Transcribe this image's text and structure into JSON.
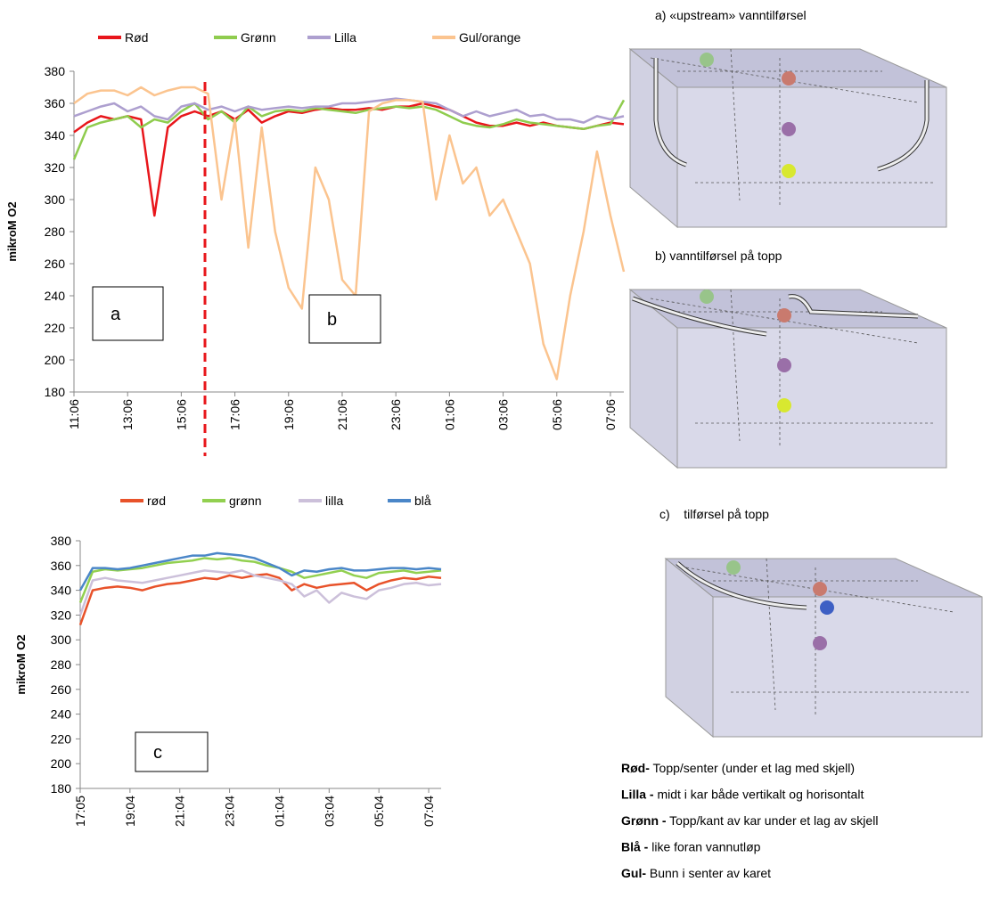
{
  "chart_data": [
    {
      "type": "line",
      "y_label": "mikroM O2",
      "categories": [
        "11:06",
        null,
        null,
        null,
        "13:06",
        null,
        null,
        null,
        "15:06",
        null,
        null,
        null,
        "17:06",
        null,
        null,
        null,
        "19:06",
        null,
        null,
        null,
        "21:06",
        null,
        null,
        null,
        "23:06",
        null,
        null,
        null,
        "01:06",
        null,
        null,
        null,
        "03:06",
        null,
        null,
        null,
        "05:06",
        null,
        null,
        null,
        "07:06",
        null
      ],
      "ylim": [
        180,
        380
      ],
      "yticks": [
        180,
        200,
        220,
        240,
        260,
        280,
        300,
        320,
        340,
        360,
        380
      ],
      "series": [
        {
          "name": "Rød",
          "color": "#e8161b",
          "values": [
            342,
            348,
            352,
            350,
            352,
            350,
            290,
            345,
            352,
            355,
            352,
            355,
            350,
            356,
            348,
            352,
            355,
            354,
            356,
            357,
            356,
            356,
            357,
            356,
            358,
            358,
            360,
            358,
            356,
            352,
            348,
            346,
            346,
            348,
            346,
            348,
            346,
            345,
            344,
            346,
            348,
            347
          ]
        },
        {
          "name": "Grønn",
          "color": "#8fcc4e",
          "values": [
            325,
            345,
            348,
            350,
            352,
            345,
            350,
            348,
            355,
            360,
            350,
            355,
            348,
            358,
            352,
            355,
            356,
            355,
            357,
            356,
            355,
            354,
            356,
            357,
            358,
            357,
            358,
            356,
            352,
            348,
            346,
            345,
            347,
            350,
            348,
            347,
            346,
            345,
            344,
            346,
            347,
            362
          ]
        },
        {
          "name": "Lilla",
          "color": "#ad9fcf",
          "values": [
            352,
            355,
            358,
            360,
            355,
            358,
            352,
            350,
            358,
            360,
            356,
            358,
            355,
            358,
            356,
            357,
            358,
            357,
            358,
            358,
            360,
            360,
            361,
            362,
            363,
            362,
            361,
            360,
            356,
            352,
            355,
            352,
            354,
            356,
            352,
            353,
            350,
            350,
            348,
            352,
            350,
            352
          ]
        },
        {
          "name": "Gul/orange",
          "color": "#fbc48f",
          "values": [
            360,
            366,
            368,
            368,
            365,
            370,
            365,
            368,
            370,
            370,
            366,
            300,
            350,
            270,
            345,
            280,
            245,
            232,
            320,
            300,
            250,
            240,
            355,
            360,
            362,
            362,
            361,
            300,
            340,
            310,
            320,
            290,
            300,
            280,
            260,
            210,
            188,
            240,
            280,
            330,
            290,
            255
          ]
        }
      ],
      "annotations": [
        "a",
        "b"
      ]
    },
    {
      "type": "line",
      "y_label": "mikroM O2",
      "categories": [
        "17:05",
        null,
        null,
        null,
        "19:04",
        null,
        null,
        null,
        "21:04",
        null,
        null,
        null,
        "23:04",
        null,
        null,
        null,
        "01:04",
        null,
        null,
        null,
        "03:04",
        null,
        null,
        null,
        "05:04",
        null,
        null,
        null,
        "07:04",
        null
      ],
      "ylim": [
        180,
        380
      ],
      "yticks": [
        180,
        200,
        220,
        240,
        260,
        280,
        300,
        320,
        340,
        360,
        380
      ],
      "series": [
        {
          "name": "rød",
          "color": "#e8522a",
          "values": [
            312,
            340,
            342,
            343,
            342,
            340,
            343,
            345,
            346,
            348,
            350,
            349,
            352,
            350,
            352,
            353,
            350,
            340,
            345,
            342,
            344,
            345,
            346,
            340,
            345,
            348,
            350,
            349,
            351,
            350
          ]
        },
        {
          "name": "grønn",
          "color": "#92d050",
          "values": [
            330,
            355,
            357,
            356,
            357,
            358,
            360,
            362,
            363,
            364,
            366,
            365,
            366,
            364,
            363,
            360,
            358,
            355,
            350,
            352,
            354,
            356,
            352,
            350,
            354,
            355,
            356,
            354,
            355,
            356
          ]
        },
        {
          "name": "lilla",
          "color": "#ccc0da",
          "values": [
            320,
            348,
            350,
            348,
            347,
            346,
            348,
            350,
            352,
            354,
            356,
            355,
            354,
            356,
            352,
            350,
            348,
            345,
            335,
            340,
            330,
            338,
            335,
            333,
            340,
            342,
            345,
            346,
            344,
            345
          ]
        },
        {
          "name": "blå",
          "color": "#4a86c8",
          "values": [
            340,
            358,
            358,
            357,
            358,
            360,
            362,
            364,
            366,
            368,
            368,
            370,
            369,
            368,
            366,
            362,
            358,
            352,
            356,
            355,
            357,
            358,
            356,
            356,
            357,
            358,
            358,
            357,
            358,
            357
          ]
        }
      ],
      "annotations": [
        "c"
      ]
    }
  ],
  "diagrams": [
    {
      "title": "a) «upstream» vanntilførsel"
    },
    {
      "title": "b) vanntilførsel på topp"
    },
    {
      "title": "c)    tilførsel på topp"
    }
  ],
  "key": [
    {
      "label": "Rød-",
      "text": " Topp/senter (under et lag med skjell)"
    },
    {
      "label": "Lilla -",
      "text": " midt i kar både vertikalt og horisontalt"
    },
    {
      "label": "Grønn -",
      "text": " Topp/kant av kar under et lag av skjell"
    },
    {
      "label": "Blå -",
      "text": " like foran vannutløp"
    },
    {
      "label": "Gul-",
      "text": " Bunn i senter av karet"
    }
  ]
}
